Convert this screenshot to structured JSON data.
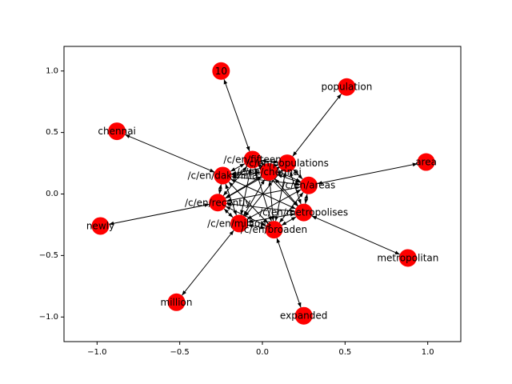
{
  "chart_data": {
    "type": "scatter",
    "xlim": [
      -1.2,
      1.2
    ],
    "ylim": [
      -1.2,
      1.2
    ],
    "xticks": [
      -1.0,
      -0.5,
      0.0,
      0.5,
      1.0
    ],
    "yticks": [
      -1.0,
      -0.5,
      0.0,
      0.5,
      1.0
    ],
    "xtick_labels": [
      "−1.0",
      "−0.5",
      "0.0",
      "0.5",
      "1.0"
    ],
    "ytick_labels": [
      "−1.0",
      "−0.5",
      "0.0",
      "0.5",
      "1.0"
    ],
    "node_color": "#ff0000",
    "edge_color": "#000000",
    "nodes": [
      {
        "id": "10",
        "label": "10",
        "x": -0.25,
        "y": 1.0
      },
      {
        "id": "population",
        "label": "population",
        "x": 0.51,
        "y": 0.87
      },
      {
        "id": "chennai",
        "label": "chennai",
        "x": -0.88,
        "y": 0.51
      },
      {
        "id": "area",
        "label": "area",
        "x": 0.99,
        "y": 0.26
      },
      {
        "id": "newly",
        "label": "newly",
        "x": -0.98,
        "y": -0.26
      },
      {
        "id": "metropolitan",
        "label": "metropolitan",
        "x": 0.88,
        "y": -0.52
      },
      {
        "id": "million",
        "label": "million",
        "x": -0.52,
        "y": -0.88
      },
      {
        "id": "expanded",
        "label": "expanded",
        "x": 0.25,
        "y": -0.99
      },
      {
        "id": "c_fifteen",
        "label": "/c/en/fifteen",
        "x": -0.06,
        "y": 0.28
      },
      {
        "id": "c_populations",
        "label": "/c/en/populations",
        "x": 0.15,
        "y": 0.25
      },
      {
        "id": "c_chennai",
        "label": "/c/en/chennai",
        "x": 0.04,
        "y": 0.18
      },
      {
        "id": "c_dakshina",
        "label": "/c/en/dakshina",
        "x": -0.24,
        "y": 0.15
      },
      {
        "id": "c_areas",
        "label": "/c/en/areas",
        "x": 0.28,
        "y": 0.07
      },
      {
        "id": "c_recently",
        "label": "/c/en/recently",
        "x": -0.27,
        "y": -0.07
      },
      {
        "id": "c_metropolises",
        "label": "/c/en/metropolises",
        "x": 0.25,
        "y": -0.15
      },
      {
        "id": "c_millions",
        "label": "/c/en/millions",
        "x": -0.14,
        "y": -0.24
      },
      {
        "id": "c_broaden",
        "label": "/c/en/broaden",
        "x": 0.07,
        "y": -0.29
      }
    ],
    "edges": [
      [
        "10",
        "c_fifteen"
      ],
      [
        "population",
        "c_populations"
      ],
      [
        "chennai",
        "c_dakshina"
      ],
      [
        "area",
        "c_areas"
      ],
      [
        "newly",
        "c_recently"
      ],
      [
        "metropolitan",
        "c_metropolises"
      ],
      [
        "million",
        "c_millions"
      ],
      [
        "expanded",
        "c_broaden"
      ],
      [
        "c_fifteen",
        "c_populations"
      ],
      [
        "c_fifteen",
        "c_chennai"
      ],
      [
        "c_fifteen",
        "c_dakshina"
      ],
      [
        "c_fifteen",
        "c_areas"
      ],
      [
        "c_fifteen",
        "c_recently"
      ],
      [
        "c_fifteen",
        "c_metropolises"
      ],
      [
        "c_fifteen",
        "c_millions"
      ],
      [
        "c_fifteen",
        "c_broaden"
      ],
      [
        "c_populations",
        "c_chennai"
      ],
      [
        "c_populations",
        "c_dakshina"
      ],
      [
        "c_populations",
        "c_areas"
      ],
      [
        "c_populations",
        "c_recently"
      ],
      [
        "c_populations",
        "c_metropolises"
      ],
      [
        "c_populations",
        "c_millions"
      ],
      [
        "c_populations",
        "c_broaden"
      ],
      [
        "c_chennai",
        "c_dakshina"
      ],
      [
        "c_chennai",
        "c_areas"
      ],
      [
        "c_chennai",
        "c_recently"
      ],
      [
        "c_chennai",
        "c_metropolises"
      ],
      [
        "c_chennai",
        "c_millions"
      ],
      [
        "c_chennai",
        "c_broaden"
      ],
      [
        "c_dakshina",
        "c_areas"
      ],
      [
        "c_dakshina",
        "c_recently"
      ],
      [
        "c_dakshina",
        "c_metropolises"
      ],
      [
        "c_dakshina",
        "c_millions"
      ],
      [
        "c_dakshina",
        "c_broaden"
      ],
      [
        "c_areas",
        "c_recently"
      ],
      [
        "c_areas",
        "c_metropolises"
      ],
      [
        "c_areas",
        "c_millions"
      ],
      [
        "c_areas",
        "c_broaden"
      ],
      [
        "c_recently",
        "c_metropolises"
      ],
      [
        "c_recently",
        "c_millions"
      ],
      [
        "c_recently",
        "c_broaden"
      ],
      [
        "c_metropolises",
        "c_millions"
      ],
      [
        "c_metropolises",
        "c_broaden"
      ],
      [
        "c_millions",
        "c_broaden"
      ]
    ]
  }
}
